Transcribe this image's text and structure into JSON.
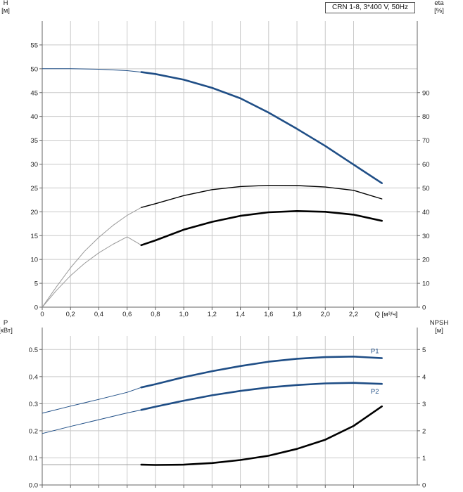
{
  "legend": {
    "text": "CRN 1-8, 3*400 V, 50Hz"
  },
  "colors": {
    "blue": "#1f4e86",
    "black": "#000000",
    "thin": "#9a9a9a",
    "grid": "#c9c9c9",
    "axis": "#666666"
  },
  "chart_data": [
    {
      "type": "line",
      "panel": "head-efficiency",
      "xlabel": "Q [м³/ч]",
      "xlim": [
        0,
        2.65
      ],
      "xticks": [
        0,
        0.2,
        0.4,
        0.6,
        0.8,
        1.0,
        1.2,
        1.4,
        1.6,
        1.8,
        2.0,
        2.2
      ],
      "xtick_labels": [
        "0",
        "0,2",
        "0,4",
        "0,6",
        "0,8",
        "1,0",
        "1,2",
        "1,4",
        "1,6",
        "1,8",
        "2,0",
        "2,2"
      ],
      "ylabel_left": [
        "H",
        "[м]"
      ],
      "ylim_left": [
        0,
        60
      ],
      "yticks_left": [
        0,
        5,
        10,
        15,
        20,
        25,
        30,
        35,
        40,
        45,
        50,
        55
      ],
      "ylabel_right": [
        "eta",
        "[%]"
      ],
      "ylim_right": [
        0,
        120
      ],
      "yticks_right": [
        0,
        10,
        20,
        30,
        40,
        50,
        60,
        70,
        80,
        90
      ],
      "grid": true,
      "series": [
        {
          "key": "H",
          "axis": "left",
          "color": "#1f4e86",
          "x": [
            0,
            0.2,
            0.4,
            0.6,
            0.7,
            0.8,
            1.0,
            1.2,
            1.4,
            1.6,
            1.8,
            2.0,
            2.2,
            2.4
          ],
          "y": [
            50,
            50,
            49.9,
            49.6,
            49.3,
            48.9,
            47.7,
            46.0,
            43.8,
            40.8,
            37.4,
            33.8,
            29.9,
            26.0
          ],
          "operating_from": 0.7
        },
        {
          "key": "eta_pump",
          "axis": "right",
          "color": "#000000",
          "x": [
            0,
            0.1,
            0.2,
            0.3,
            0.4,
            0.5,
            0.6,
            0.7,
            0.8,
            1.0,
            1.2,
            1.4,
            1.6,
            1.8,
            2.0,
            2.2,
            2.4
          ],
          "y": [
            0,
            8.5,
            16.5,
            23.5,
            29.3,
            34.3,
            38.5,
            41.8,
            43.4,
            46.8,
            49.3,
            50.6,
            51.1,
            51.0,
            50.4,
            49.0,
            45.4
          ],
          "operating_from": 0.7
        },
        {
          "key": "eta_total",
          "axis": "right",
          "color": "#000000",
          "x": [
            0,
            0.1,
            0.2,
            0.3,
            0.4,
            0.5,
            0.6,
            0.7,
            0.8,
            1.0,
            1.2,
            1.4,
            1.6,
            1.8,
            2.0,
            2.2,
            2.4
          ],
          "y": [
            0,
            7.0,
            13.2,
            18.4,
            22.8,
            26.4,
            29.5,
            26.0,
            28.0,
            32.5,
            35.8,
            38.3,
            39.8,
            40.3,
            40.0,
            38.8,
            36.2
          ],
          "operating_from": 0.7
        }
      ]
    },
    {
      "type": "line",
      "panel": "power-npsh",
      "xlim": [
        0,
        2.65
      ],
      "xticks": [
        0,
        0.2,
        0.4,
        0.6,
        0.8,
        1.0,
        1.2,
        1.4,
        1.6,
        1.8,
        2.0,
        2.2
      ],
      "ylabel_left": [
        "P",
        "[кВт]"
      ],
      "ylim_left": [
        0,
        0.55
      ],
      "yticks_left": [
        0,
        0.1,
        0.2,
        0.3,
        0.4,
        0.5
      ],
      "ytick_labels_left": [
        "0.0",
        "0.1",
        "0.2",
        "0.3",
        "0.4",
        "0.5"
      ],
      "ylabel_right": [
        "NPSH",
        "[м]"
      ],
      "ylim_right": [
        0,
        5.5
      ],
      "yticks_right": [
        0,
        1,
        2,
        3,
        4,
        5
      ],
      "grid": true,
      "series": [
        {
          "key": "P1",
          "name": "P1",
          "axis": "left",
          "color": "#1f4e86",
          "x": [
            0,
            0.2,
            0.4,
            0.6,
            0.7,
            0.8,
            1.0,
            1.2,
            1.4,
            1.6,
            1.8,
            2.0,
            2.2,
            2.4
          ],
          "y": [
            0.265,
            0.291,
            0.316,
            0.342,
            0.36,
            0.372,
            0.398,
            0.42,
            0.439,
            0.455,
            0.466,
            0.472,
            0.474,
            0.468
          ],
          "operating_from": 0.7
        },
        {
          "key": "P2",
          "name": "P2",
          "axis": "left",
          "color": "#1f4e86",
          "x": [
            0,
            0.2,
            0.4,
            0.6,
            0.7,
            0.8,
            1.0,
            1.2,
            1.4,
            1.6,
            1.8,
            2.0,
            2.2,
            2.4
          ],
          "y": [
            0.19,
            0.216,
            0.241,
            0.266,
            0.277,
            0.289,
            0.311,
            0.331,
            0.347,
            0.36,
            0.369,
            0.375,
            0.377,
            0.373
          ],
          "operating_from": 0.7
        },
        {
          "key": "NPSH",
          "axis": "right",
          "color": "#000000",
          "x": [
            0,
            0.2,
            0.4,
            0.6,
            0.7,
            0.8,
            1.0,
            1.2,
            1.4,
            1.6,
            1.8,
            2.0,
            2.2,
            2.4
          ],
          "y": [
            0.75,
            0.75,
            0.75,
            0.75,
            0.75,
            0.74,
            0.75,
            0.81,
            0.92,
            1.08,
            1.33,
            1.67,
            2.18,
            2.9
          ],
          "operating_from": 0.7
        }
      ]
    }
  ]
}
